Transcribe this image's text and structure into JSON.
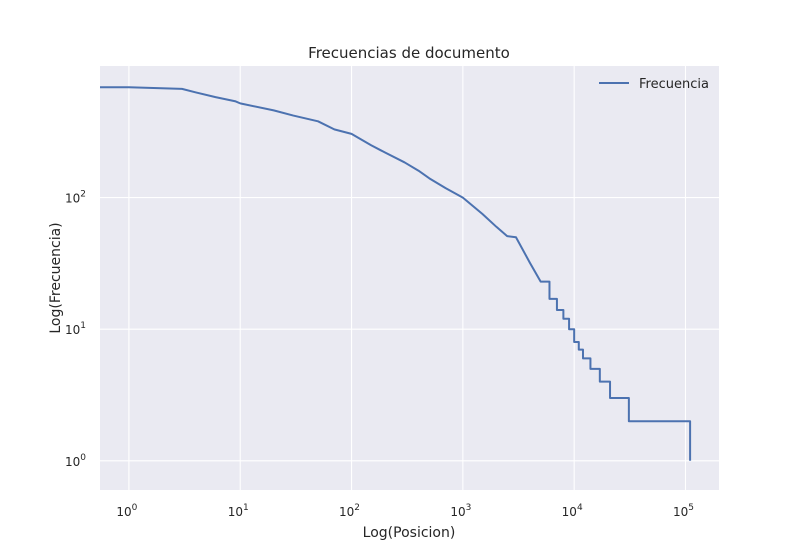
{
  "chart_data": {
    "type": "line",
    "title": "Frecuencias de documento",
    "xlabel": "Log(Posicion)",
    "ylabel": "Log(Frecuencia)",
    "x_scale": "log",
    "y_scale": "log",
    "xlim": [
      0.55,
      200000
    ],
    "ylim": [
      0.6,
      1000
    ],
    "x_ticks": [
      {
        "value": 1,
        "base": "10",
        "exp": "0"
      },
      {
        "value": 10,
        "base": "10",
        "exp": "1"
      },
      {
        "value": 100,
        "base": "10",
        "exp": "2"
      },
      {
        "value": 1000,
        "base": "10",
        "exp": "3"
      },
      {
        "value": 10000,
        "base": "10",
        "exp": "4"
      },
      {
        "value": 100000,
        "base": "10",
        "exp": "5"
      }
    ],
    "y_ticks": [
      {
        "value": 1,
        "base": "10",
        "exp": "0"
      },
      {
        "value": 10,
        "base": "10",
        "exp": "1"
      },
      {
        "value": 100,
        "base": "10",
        "exp": "2"
      }
    ],
    "grid": true,
    "legend_position": "top-right",
    "colors": {
      "background": "#eaeaf2",
      "grid": "#ffffff",
      "line": "#4c72b0",
      "text": "#262626"
    },
    "series": [
      {
        "name": "Frecuencia",
        "x": [
          0.55,
          1,
          3,
          4,
          6,
          9,
          10,
          20,
          30,
          50,
          70,
          100,
          150,
          200,
          300,
          400,
          500,
          700,
          1000,
          1500,
          2000,
          2500,
          3000,
          4000,
          5000,
          6000,
          7000,
          8000,
          9000,
          10000,
          11000,
          12000,
          14000,
          17000,
          21000,
          31000,
          110000
        ],
        "y": [
          690,
          690,
          670,
          630,
          580,
          540,
          520,
          460,
          420,
          380,
          330,
          305,
          250,
          220,
          185,
          160,
          140,
          118,
          100,
          75,
          60,
          51,
          50,
          32,
          23,
          17,
          14,
          12,
          10,
          8,
          7,
          6,
          5,
          4,
          3,
          2,
          1
        ]
      }
    ]
  }
}
